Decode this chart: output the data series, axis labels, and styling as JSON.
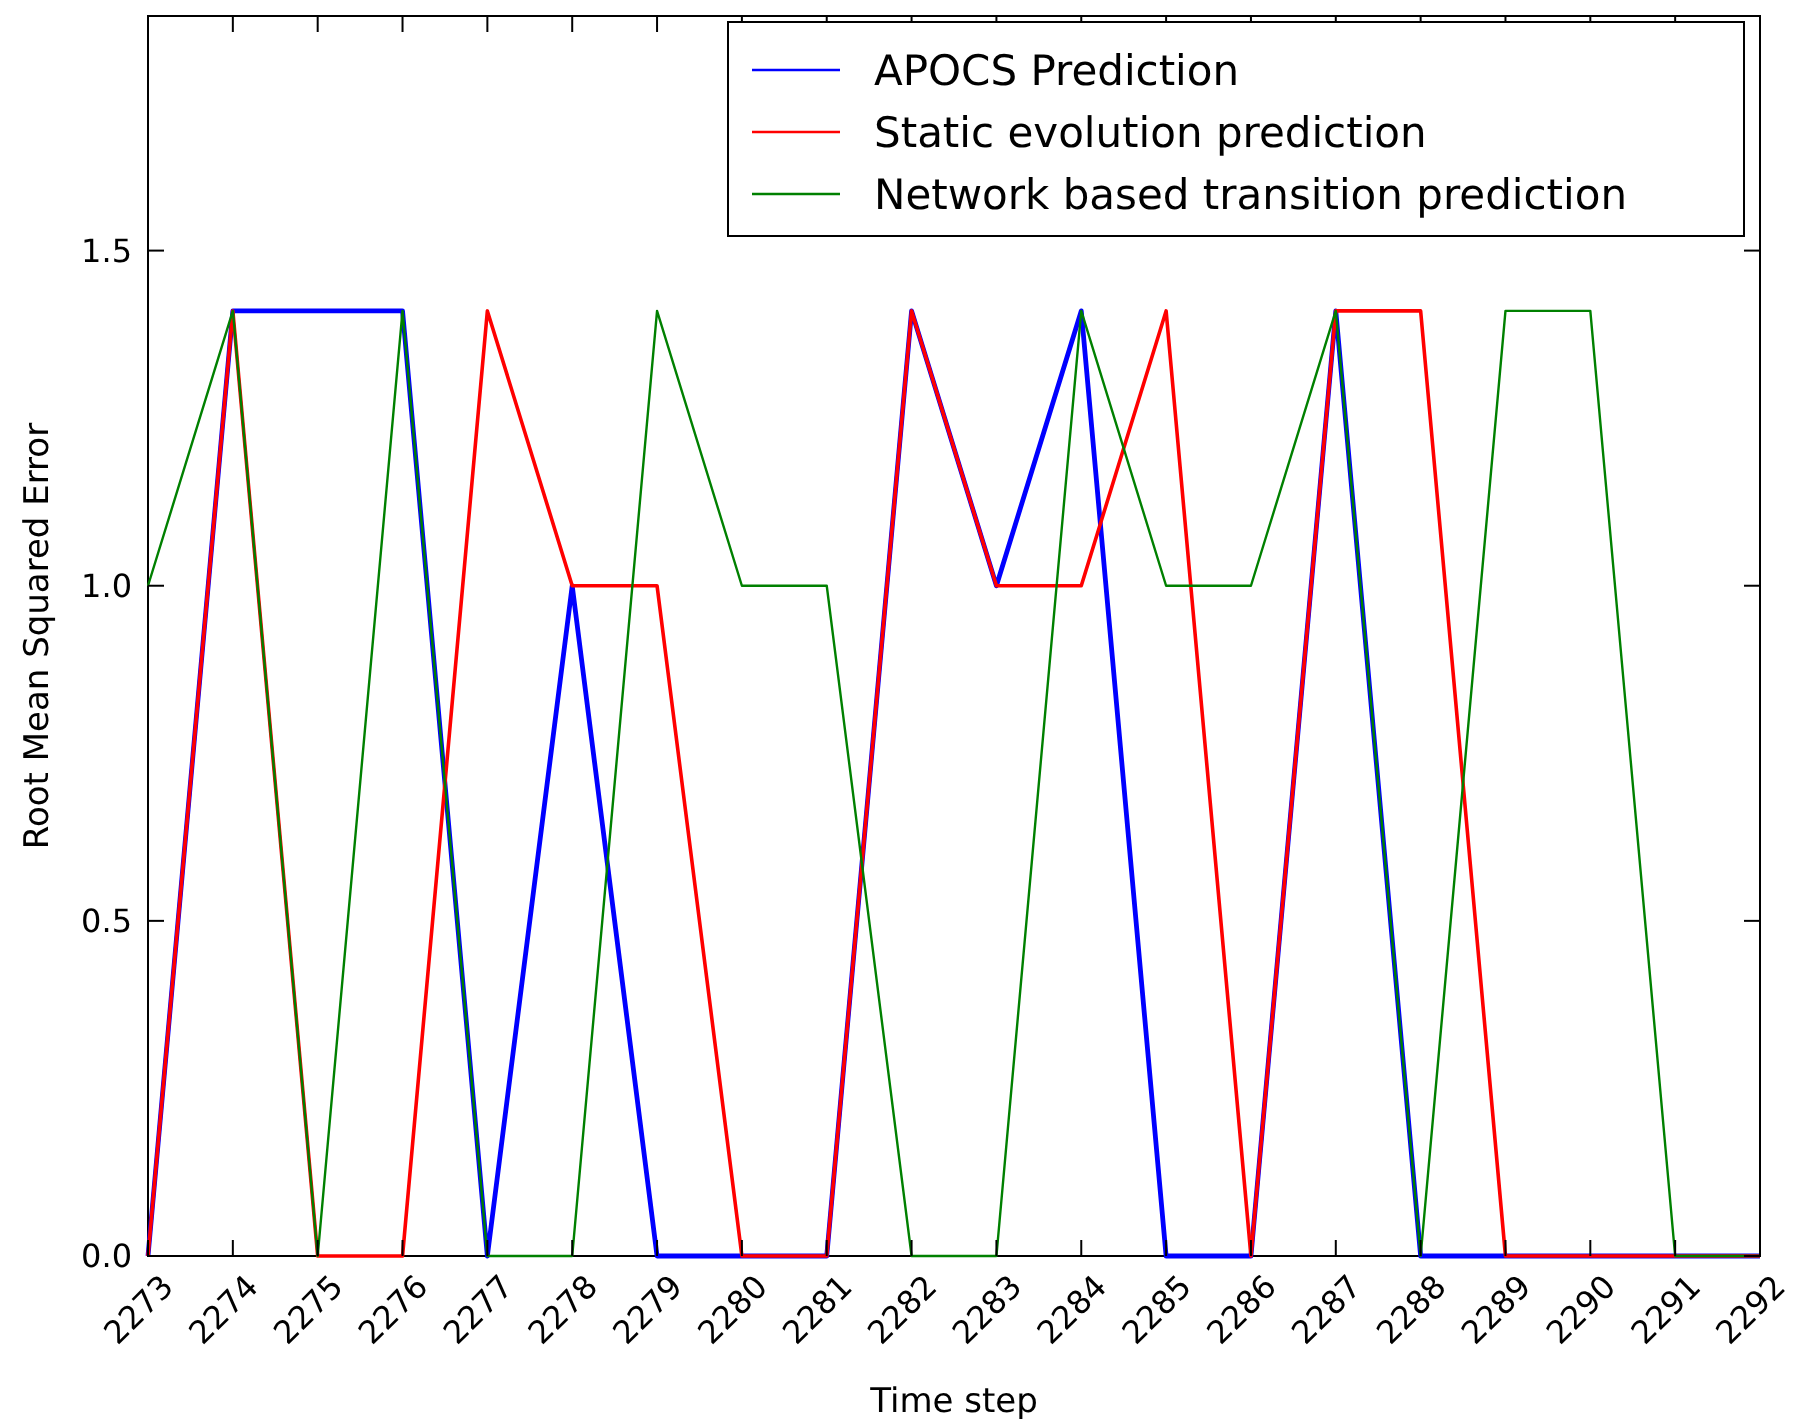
{
  "chart_data": {
    "type": "line",
    "xlabel": "Time step",
    "ylabel": "Root Mean Squared Error",
    "x": [
      2273,
      2274,
      2275,
      2276,
      2277,
      2278,
      2279,
      2280,
      2281,
      2282,
      2283,
      2284,
      2285,
      2286,
      2287,
      2288,
      2289,
      2290,
      2291,
      2292
    ],
    "series": [
      {
        "name": "APOCS Prediction",
        "color": "#0000ff",
        "values": [
          0,
          1.41,
          1.41,
          1.41,
          0,
          1,
          0,
          0,
          0,
          1.41,
          1,
          1.41,
          0,
          0,
          1.41,
          0,
          0,
          0,
          0,
          0
        ]
      },
      {
        "name": "Static evolution prediction",
        "color": "#ff0000",
        "values": [
          0,
          1.41,
          0,
          0,
          1.41,
          1,
          1,
          0,
          0,
          1.41,
          1,
          1,
          1.41,
          0,
          1.41,
          1.41,
          0,
          0,
          0,
          0
        ]
      },
      {
        "name": "Network based transition prediction",
        "color": "#008000",
        "values": [
          1,
          1.41,
          0,
          1.41,
          0,
          0,
          1.41,
          1,
          1,
          0,
          0,
          1.41,
          1,
          1,
          1.41,
          0,
          1.41,
          1.41,
          0,
          0
        ]
      }
    ],
    "xlim": [
      2273,
      2292
    ],
    "xticks": [
      2273,
      2274,
      2275,
      2276,
      2277,
      2278,
      2279,
      2280,
      2281,
      2282,
      2283,
      2284,
      2285,
      2286,
      2287,
      2288,
      2289,
      2290,
      2291,
      2292
    ],
    "ylim": [
      0,
      1.85
    ],
    "yticks": [
      {
        "value": 0,
        "label": "0.0"
      },
      {
        "value": 0.5,
        "label": "0.5"
      },
      {
        "value": 1,
        "label": "1.0"
      },
      {
        "value": 1.5,
        "label": "1.5"
      }
    ],
    "legend": "top right",
    "grid": false,
    "marker": "none",
    "line_style": "solid"
  }
}
